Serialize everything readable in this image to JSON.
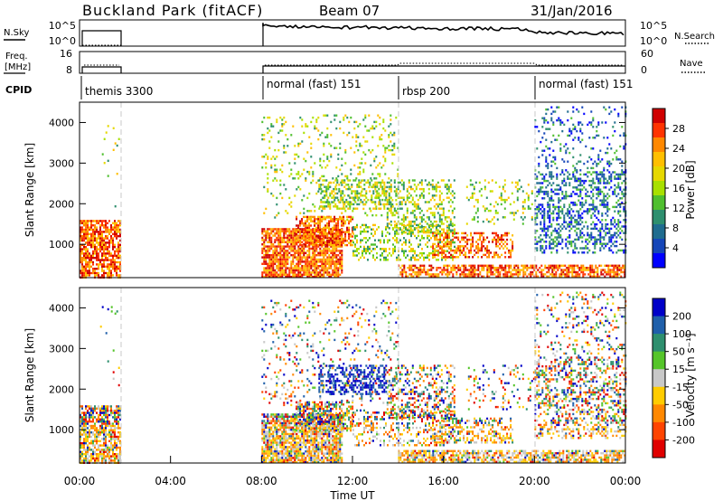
{
  "header": {
    "station": "Buckland Park (fitACF)",
    "beam": "Beam 07",
    "date": "31/Jan/2016"
  },
  "side_labels": {
    "nsky": "N.Sky",
    "freq_line1": "Freq.",
    "freq_line2": "[MHz]",
    "cpid": "CPID",
    "nsearch": "N.Search",
    "nave": "Nave"
  },
  "noise_axis_ticks": [
    "10^5",
    "10^0"
  ],
  "noise_axis_ticks_right": [
    "10^5",
    "10^0"
  ],
  "freq_axis_ticks": [
    "16",
    "8"
  ],
  "nave_axis_ticks": [
    "60",
    "0"
  ],
  "cpid_segments": [
    {
      "label": "themis 3300",
      "start": 0,
      "end": 1.75
    },
    {
      "label": "normal (fast) 151",
      "start": 8,
      "end": 14
    },
    {
      "label": "rbsp 200",
      "start": 14,
      "end": 20
    },
    {
      "label": "normal (fast) 151",
      "start": 20,
      "end": 24
    }
  ],
  "chart_data": [
    {
      "type": "heatmap",
      "title": "",
      "ylabel": "Slant Range [km]",
      "xlabel": "",
      "xlim": [
        0,
        24
      ],
      "ylim": [
        180,
        4500
      ],
      "yticks": [
        "1000",
        "2000",
        "3000",
        "4000"
      ],
      "colorbar": {
        "label": "Power [dB]",
        "ticks": [
          "28",
          "24",
          "20",
          "16",
          "12",
          "8",
          "4"
        ],
        "colors": [
          "#d00000",
          "#ff3300",
          "#ff8800",
          "#ffbf00",
          "#e6d800",
          "#a8e000",
          "#4fbf2f",
          "#2e8f6e",
          "#1f6c8f",
          "#1546b8",
          "#0000ff"
        ]
      }
    },
    {
      "type": "heatmap",
      "title": "",
      "ylabel": "Slant Range [km]",
      "xlabel": "Time UT",
      "xlim": [
        0,
        24
      ],
      "ylim": [
        180,
        4500
      ],
      "yticks": [
        "1000",
        "2000",
        "3000",
        "4000"
      ],
      "xticks": [
        "00:00",
        "04:00",
        "08:00",
        "12:00",
        "16:00",
        "20:00",
        "00:00"
      ],
      "colorbar": {
        "label": "Velocity [m s⁻¹]",
        "ticks": [
          "200",
          "100",
          "50",
          "15",
          "-15",
          "-50",
          "-100",
          "-200"
        ],
        "colors": [
          "#0000c8",
          "#1f5faa",
          "#2e8f6e",
          "#55c52a",
          "#c8c8c8",
          "#ffcc00",
          "#ff8800",
          "#ff4400",
          "#e00000"
        ]
      }
    }
  ]
}
